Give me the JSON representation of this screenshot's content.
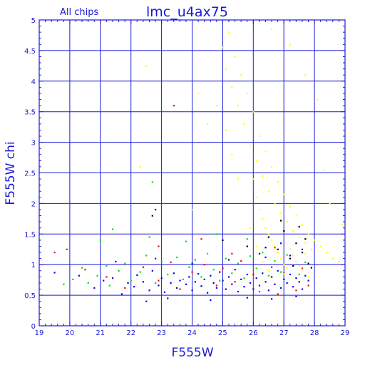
{
  "chart_data": {
    "type": "scatter",
    "title": "lmc_u4ax75",
    "subtitle": "All chips",
    "xlabel": "F555W",
    "ylabel": "F555W  chi",
    "xlim": [
      19,
      29
    ],
    "ylim": [
      0,
      5
    ],
    "xticks": [
      "19",
      "20",
      "21",
      "22",
      "23",
      "24",
      "25",
      "26",
      "27",
      "28",
      "29"
    ],
    "yticks": [
      "0",
      "0.5",
      "1",
      "1.5",
      "2",
      "2.5",
      "3",
      "3.5",
      "4",
      "4.5",
      "5"
    ],
    "grid": true,
    "colors": {
      "frame": "#1a1ad6",
      "grid": "#1a1ad6"
    },
    "series": [
      {
        "color": "#0000ff",
        "points": [
          [
            19.5,
            0.87
          ],
          [
            20.3,
            0.82
          ],
          [
            20.8,
            0.62
          ],
          [
            21.1,
            0.74
          ],
          [
            21.4,
            0.78
          ],
          [
            21.7,
            0.52
          ],
          [
            21.9,
            0.7
          ],
          [
            22.1,
            0.64
          ],
          [
            22.2,
            0.83
          ],
          [
            22.4,
            0.72
          ],
          [
            22.6,
            0.58
          ],
          [
            22.7,
            0.9
          ],
          [
            22.9,
            0.66
          ],
          [
            23.0,
            0.78
          ],
          [
            23.1,
            0.55
          ],
          [
            23.3,
            0.7
          ],
          [
            23.4,
            0.86
          ],
          [
            23.5,
            0.62
          ],
          [
            23.6,
            0.74
          ],
          [
            23.8,
            0.68
          ],
          [
            23.9,
            0.8
          ],
          [
            24.0,
            0.58
          ],
          [
            24.1,
            0.72
          ],
          [
            24.2,
            0.85
          ],
          [
            24.3,
            0.65
          ],
          [
            24.4,
            0.76
          ],
          [
            24.5,
            0.54
          ],
          [
            24.6,
            0.82
          ],
          [
            24.7,
            0.7
          ],
          [
            24.8,
            0.62
          ],
          [
            24.9,
            0.88
          ],
          [
            25.0,
            0.74
          ],
          [
            25.1,
            0.6
          ],
          [
            25.2,
            0.8
          ],
          [
            25.3,
            0.68
          ],
          [
            25.4,
            0.92
          ],
          [
            25.5,
            0.56
          ],
          [
            25.6,
            0.76
          ],
          [
            25.7,
            0.64
          ],
          [
            25.8,
            0.84
          ],
          [
            25.9,
            0.7
          ],
          [
            26.0,
            0.6
          ],
          [
            26.1,
            0.78
          ],
          [
            26.2,
            0.66
          ],
          [
            26.3,
            0.86
          ],
          [
            26.4,
            0.72
          ],
          [
            26.5,
            0.58
          ],
          [
            26.6,
            0.8
          ],
          [
            26.7,
            0.68
          ],
          [
            26.8,
            0.9
          ],
          [
            26.9,
            0.62
          ],
          [
            27.0,
            0.76
          ],
          [
            27.1,
            0.7
          ],
          [
            27.2,
            0.84
          ],
          [
            27.3,
            0.64
          ],
          [
            27.4,
            0.78
          ],
          [
            27.5,
            0.72
          ],
          [
            27.6,
            0.6
          ],
          [
            27.7,
            0.82
          ],
          [
            27.8,
            0.74
          ],
          [
            22.5,
            0.4
          ],
          [
            23.2,
            0.45
          ],
          [
            24.6,
            0.42
          ],
          [
            25.8,
            0.46
          ],
          [
            26.6,
            0.44
          ],
          [
            27.4,
            0.48
          ],
          [
            21.5,
            1.05
          ],
          [
            22.8,
            1.1
          ],
          [
            24.0,
            1.02
          ],
          [
            25.2,
            1.08
          ],
          [
            26.4,
            1.12
          ],
          [
            27.2,
            1.15
          ],
          [
            27.6,
            1.25
          ],
          [
            26.9,
            1.35
          ]
        ]
      },
      {
        "color": "#00e000",
        "points": [
          [
            19.8,
            0.68
          ],
          [
            20.1,
            0.76
          ],
          [
            20.4,
            0.95
          ],
          [
            20.6,
            0.7
          ],
          [
            20.9,
            0.82
          ],
          [
            21.2,
            0.98
          ],
          [
            21.3,
            0.66
          ],
          [
            21.6,
            0.9
          ],
          [
            21.8,
            1.02
          ],
          [
            22.0,
            0.74
          ],
          [
            22.3,
            0.88
          ],
          [
            22.5,
            1.15
          ],
          [
            22.8,
            0.7
          ],
          [
            23.0,
            1.05
          ],
          [
            23.2,
            0.84
          ],
          [
            23.5,
            1.12
          ],
          [
            23.7,
            0.76
          ],
          [
            23.9,
            0.96
          ],
          [
            24.1,
            1.08
          ],
          [
            24.3,
            0.8
          ],
          [
            24.5,
            1.18
          ],
          [
            24.7,
            0.92
          ],
          [
            24.9,
            0.74
          ],
          [
            25.1,
            1.1
          ],
          [
            25.3,
            0.86
          ],
          [
            25.5,
            1.02
          ],
          [
            25.7,
            0.78
          ],
          [
            25.9,
            1.14
          ],
          [
            26.1,
            0.94
          ],
          [
            26.3,
            1.2
          ],
          [
            26.5,
            0.82
          ],
          [
            26.7,
            1.06
          ],
          [
            26.9,
            0.88
          ],
          [
            27.1,
            1.16
          ],
          [
            27.3,
            0.98
          ],
          [
            27.5,
            0.84
          ],
          [
            27.7,
            1.04
          ],
          [
            21.0,
            1.4
          ],
          [
            21.4,
            1.58
          ],
          [
            22.6,
            1.45
          ],
          [
            23.8,
            1.38
          ],
          [
            24.8,
            1.5
          ],
          [
            25.8,
            1.42
          ],
          [
            22.7,
            2.35
          ]
        ]
      },
      {
        "color": "#ff0000",
        "points": [
          [
            19.5,
            1.2
          ],
          [
            19.9,
            1.25
          ],
          [
            20.5,
            0.92
          ],
          [
            21.2,
            0.8
          ],
          [
            21.8,
            0.62
          ],
          [
            22.4,
            0.96
          ],
          [
            22.9,
            0.74
          ],
          [
            23.3,
            1.04
          ],
          [
            23.6,
            0.6
          ],
          [
            24.0,
            0.88
          ],
          [
            24.4,
            1.0
          ],
          [
            24.8,
            0.66
          ],
          [
            25.0,
            0.94
          ],
          [
            25.4,
            0.72
          ],
          [
            25.6,
            1.06
          ],
          [
            26.0,
            0.84
          ],
          [
            26.2,
            0.56
          ],
          [
            26.6,
            0.96
          ],
          [
            26.8,
            0.52
          ],
          [
            27.0,
            0.86
          ],
          [
            27.4,
            0.58
          ],
          [
            27.6,
            0.94
          ],
          [
            27.8,
            0.66
          ],
          [
            23.4,
            3.6
          ],
          [
            22.9,
            1.3
          ],
          [
            24.3,
            1.42
          ],
          [
            25.3,
            1.18
          ],
          [
            26.7,
            1.28
          ]
        ]
      },
      {
        "color": "#000000",
        "points": [
          [
            22.7,
            1.8
          ],
          [
            22.8,
            1.9
          ],
          [
            25.0,
            1.4
          ],
          [
            25.8,
            1.3
          ],
          [
            26.2,
            1.18
          ],
          [
            26.5,
            1.45
          ],
          [
            26.8,
            1.25
          ],
          [
            27.0,
            1.55
          ],
          [
            27.2,
            1.1
          ],
          [
            27.4,
            1.35
          ],
          [
            27.6,
            1.2
          ],
          [
            27.8,
            1.02
          ],
          [
            27.9,
            0.95
          ],
          [
            27.5,
            1.62
          ],
          [
            26.9,
            1.72
          ],
          [
            26.4,
            1.28
          ],
          [
            27.3,
            0.98
          ],
          [
            27.7,
            1.42
          ]
        ]
      },
      {
        "color": "#ffff00",
        "points": [
          [
            25.0,
            4.55
          ],
          [
            25.1,
            4.2
          ],
          [
            25.2,
            4.8
          ],
          [
            25.3,
            3.9
          ],
          [
            25.4,
            4.4
          ],
          [
            25.5,
            3.6
          ],
          [
            25.6,
            4.1
          ],
          [
            25.7,
            3.3
          ],
          [
            25.8,
            3.8
          ],
          [
            25.9,
            2.95
          ],
          [
            26.0,
            3.5
          ],
          [
            26.1,
            2.7
          ],
          [
            26.2,
            3.1
          ],
          [
            26.3,
            2.45
          ],
          [
            26.4,
            2.85
          ],
          [
            26.5,
            2.2
          ],
          [
            26.6,
            2.6
          ],
          [
            26.7,
            2.0
          ],
          [
            26.8,
            2.35
          ],
          [
            26.9,
            1.85
          ],
          [
            27.0,
            2.15
          ],
          [
            27.1,
            1.7
          ],
          [
            27.2,
            1.95
          ],
          [
            27.3,
            1.55
          ],
          [
            27.4,
            1.8
          ],
          [
            27.5,
            1.45
          ],
          [
            27.6,
            1.65
          ],
          [
            27.7,
            1.35
          ],
          [
            27.8,
            1.5
          ],
          [
            27.9,
            1.25
          ],
          [
            28.0,
            1.4
          ],
          [
            28.2,
            1.3
          ],
          [
            28.4,
            1.2
          ],
          [
            28.6,
            1.1
          ],
          [
            28.8,
            1.05
          ],
          [
            26.0,
            2.4
          ],
          [
            26.1,
            2.1
          ],
          [
            26.2,
            1.9
          ],
          [
            26.3,
            1.75
          ],
          [
            26.4,
            1.6
          ],
          [
            26.5,
            1.5
          ],
          [
            26.6,
            1.4
          ],
          [
            26.7,
            1.3
          ],
          [
            26.8,
            1.2
          ],
          [
            26.9,
            1.1
          ],
          [
            27.0,
            1.0
          ],
          [
            27.1,
            0.95
          ],
          [
            27.2,
            1.25
          ],
          [
            27.3,
            1.15
          ],
          [
            27.4,
            1.05
          ],
          [
            27.5,
            0.98
          ],
          [
            27.6,
            0.92
          ],
          [
            27.7,
            1.18
          ],
          [
            25.5,
            2.4
          ],
          [
            25.3,
            2.8
          ],
          [
            25.1,
            3.2
          ],
          [
            24.8,
            3.6
          ],
          [
            24.5,
            3.3
          ],
          [
            24.2,
            3.8
          ],
          [
            26.6,
            4.85
          ],
          [
            27.2,
            4.6
          ],
          [
            27.7,
            4.1
          ],
          [
            28.1,
            3.7
          ],
          [
            28.3,
            2.55
          ],
          [
            28.5,
            2.0
          ],
          [
            28.9,
            1.65
          ],
          [
            29.0,
            1.25
          ],
          [
            22.5,
            4.25
          ],
          [
            22.3,
            2.6
          ],
          [
            24.0,
            1.9
          ],
          [
            25.9,
            1.6
          ],
          [
            26.1,
            1.3
          ],
          [
            26.3,
            1.05
          ],
          [
            26.5,
            0.9
          ],
          [
            27.0,
            0.85
          ],
          [
            27.8,
            0.8
          ]
        ]
      }
    ]
  }
}
